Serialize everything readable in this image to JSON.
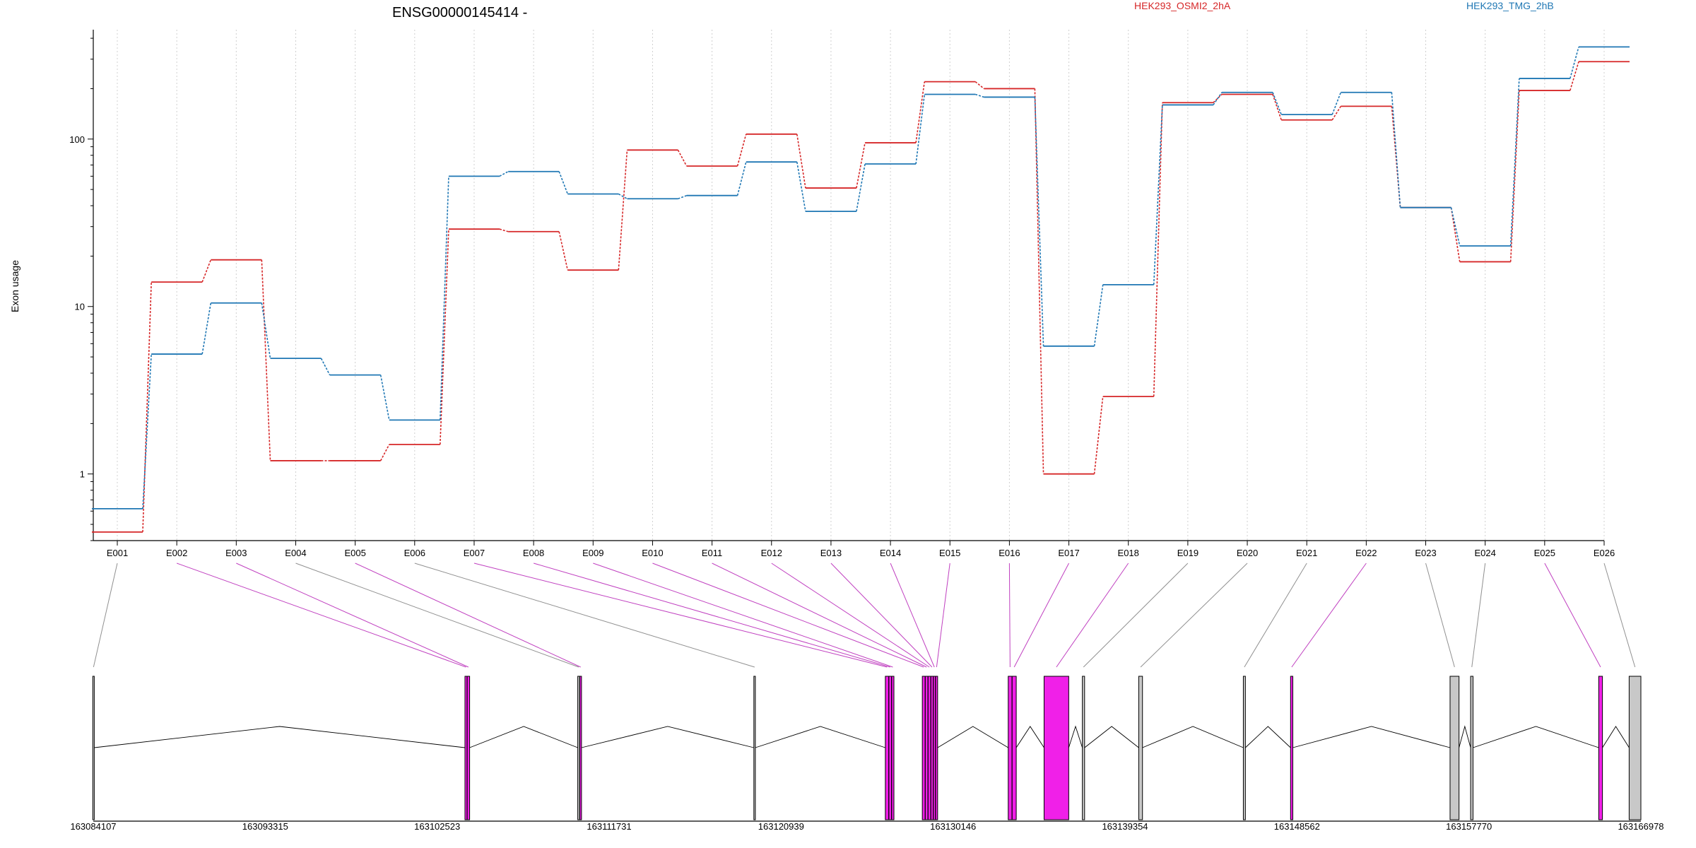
{
  "chart_data": {
    "type": "line",
    "title": "ENSG00000145414 -",
    "ylabel": "Exon usage",
    "xlabel": "",
    "yscale": "log",
    "ylim": [
      0.4,
      450
    ],
    "y_ticks": [
      1,
      10,
      100
    ],
    "y_tick_labels": [
      "1",
      "10",
      "100"
    ],
    "grid": "vertical dotted",
    "legend_position": "top",
    "categories": [
      "E001",
      "E002",
      "E003",
      "E004",
      "E005",
      "E006",
      "E007",
      "E008",
      "E009",
      "E010",
      "E011",
      "E012",
      "E013",
      "E014",
      "E015",
      "E016",
      "E017",
      "E018",
      "E019",
      "E020",
      "E021",
      "E022",
      "E023",
      "E024",
      "E025",
      "E026"
    ],
    "series": [
      {
        "name": "HEK293_OSMI2_2hA",
        "color": "#d62728",
        "values": [
          0.45,
          14,
          19,
          1.2,
          1.2,
          1.5,
          29,
          28,
          16.5,
          86,
          69,
          107,
          51,
          95,
          220,
          200,
          1.0,
          2.9,
          165,
          185,
          130,
          157,
          39,
          18.5,
          195,
          290
        ]
      },
      {
        "name": "HEK293_TMG_2hB",
        "color": "#1f77b4",
        "values": [
          0.62,
          5.2,
          10.5,
          4.9,
          3.9,
          2.1,
          60,
          64,
          47,
          44,
          46,
          73,
          37,
          71,
          185,
          178,
          5.8,
          13.5,
          160,
          190,
          140,
          190,
          39,
          23,
          230,
          355
        ]
      }
    ],
    "gene_model": {
      "coordinate_labels": [
        "163084107",
        "163093315",
        "163102523",
        "163111731",
        "163120939",
        "163130146",
        "163139354",
        "163148562",
        "163157770",
        "163166978"
      ],
      "coord_min": 163084107,
      "coord_max": 163166978,
      "exons": [
        {
          "id": "E001",
          "start": 163084080,
          "end": 163084160,
          "highlight": false
        },
        {
          "id": "E002",
          "start": 163104010,
          "end": 163104120,
          "highlight": true
        },
        {
          "id": "E003",
          "start": 163104130,
          "end": 163104260,
          "highlight": true
        },
        {
          "id": "E004",
          "start": 163110050,
          "end": 163110150,
          "highlight": false
        },
        {
          "id": "E005",
          "start": 163110160,
          "end": 163110250,
          "highlight": true
        },
        {
          "id": "E006",
          "start": 163119480,
          "end": 163119560,
          "highlight": false
        },
        {
          "id": "E007",
          "start": 163126520,
          "end": 163126700,
          "highlight": true
        },
        {
          "id": "E008",
          "start": 163126710,
          "end": 163126850,
          "highlight": true
        },
        {
          "id": "E009",
          "start": 163126860,
          "end": 163126980,
          "highlight": true
        },
        {
          "id": "E010",
          "start": 163128500,
          "end": 163128650,
          "highlight": true
        },
        {
          "id": "E011",
          "start": 163128660,
          "end": 163128800,
          "highlight": true
        },
        {
          "id": "E012",
          "start": 163128810,
          "end": 163128950,
          "highlight": true
        },
        {
          "id": "E013",
          "start": 163128960,
          "end": 163129080,
          "highlight": true
        },
        {
          "id": "E014",
          "start": 163129090,
          "end": 163129200,
          "highlight": true
        },
        {
          "id": "E015",
          "start": 163129210,
          "end": 163129320,
          "highlight": true
        },
        {
          "id": "E016",
          "start": 163133100,
          "end": 163133300,
          "highlight": true
        },
        {
          "id": "E017",
          "start": 163133310,
          "end": 163133530,
          "highlight": true
        },
        {
          "id": "E018",
          "start": 163135020,
          "end": 163136340,
          "highlight": true
        },
        {
          "id": "E019",
          "start": 163137070,
          "end": 163137190,
          "highlight": false
        },
        {
          "id": "E020",
          "start": 163140090,
          "end": 163140290,
          "highlight": false
        },
        {
          "id": "E021",
          "start": 163145690,
          "end": 163145800,
          "highlight": false
        },
        {
          "id": "E022",
          "start": 163148220,
          "end": 163148340,
          "highlight": true
        },
        {
          "id": "E023",
          "start": 163156760,
          "end": 163157240,
          "highlight": false
        },
        {
          "id": "E024",
          "start": 163157860,
          "end": 163157990,
          "highlight": false
        },
        {
          "id": "E025",
          "start": 163164720,
          "end": 163164920,
          "highlight": true
        },
        {
          "id": "E026",
          "start": 163166350,
          "end": 163166978,
          "highlight": false
        }
      ],
      "introns": [
        [
          0,
          1
        ],
        [
          2,
          3
        ],
        [
          4,
          5
        ],
        [
          5,
          6
        ],
        [
          14,
          15
        ],
        [
          16,
          17
        ],
        [
          17,
          18
        ],
        [
          18,
          19
        ],
        [
          19,
          20
        ],
        [
          20,
          21
        ],
        [
          21,
          22
        ],
        [
          22,
          23
        ],
        [
          23,
          24
        ],
        [
          24,
          25
        ]
      ]
    }
  }
}
